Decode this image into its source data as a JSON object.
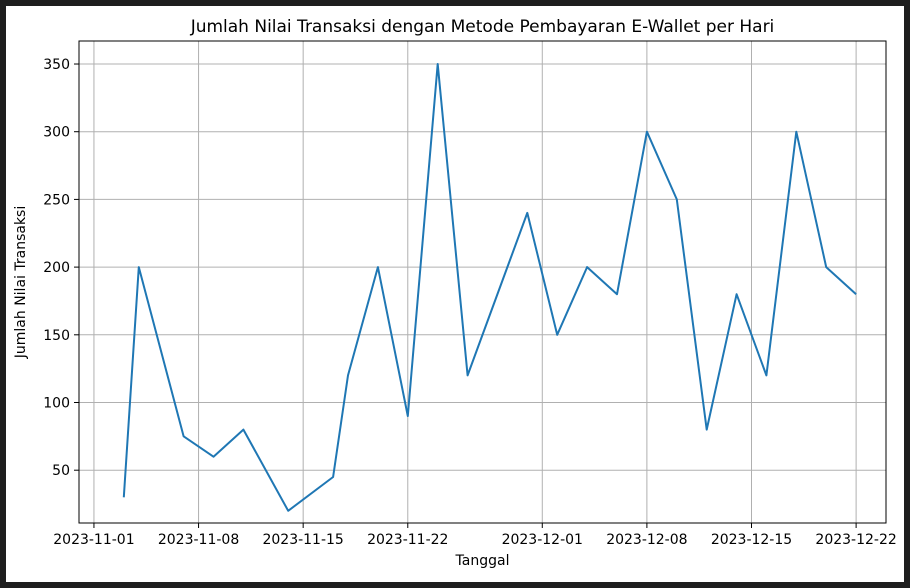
{
  "chart_data": {
    "type": "line",
    "title": "Jumlah Nilai Transaksi dengan Metode Pembayaran E-Wallet per Hari",
    "xlabel": "Tanggal",
    "ylabel": "Jumlah Nilai Transaksi",
    "x_ticks": [
      "2023-11-01",
      "2023-11-08",
      "2023-11-15",
      "2023-11-22",
      "2023-12-01",
      "2023-12-08",
      "2023-12-15",
      "2023-12-22"
    ],
    "y_ticks": [
      50,
      100,
      150,
      200,
      250,
      300,
      350
    ],
    "xlim": [
      "2023-10-31",
      "2023-12-24"
    ],
    "ylim": [
      11,
      367
    ],
    "grid": true,
    "line_color": "#1f77b4",
    "series": [
      {
        "x": [
          "2023-11-03",
          "2023-11-04",
          "2023-11-07",
          "2023-11-09",
          "2023-11-11",
          "2023-11-14",
          "2023-11-17",
          "2023-11-18",
          "2023-11-20",
          "2023-11-22",
          "2023-11-24",
          "2023-11-26",
          "2023-11-30",
          "2023-12-02",
          "2023-12-04",
          "2023-12-06",
          "2023-12-08",
          "2023-12-10",
          "2023-12-12",
          "2023-12-14",
          "2023-12-16",
          "2023-12-18",
          "2023-12-20",
          "2023-12-22"
        ],
        "values": [
          30,
          200,
          75,
          60,
          80,
          20,
          45,
          120,
          200,
          90,
          350,
          120,
          240,
          150,
          200,
          180,
          300,
          250,
          80,
          180,
          120,
          300,
          200,
          180
        ]
      }
    ]
  }
}
